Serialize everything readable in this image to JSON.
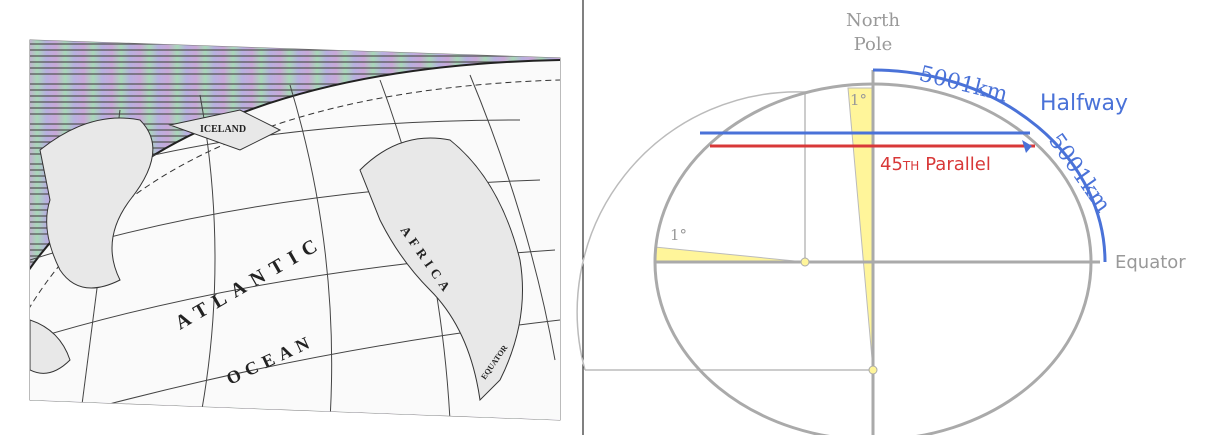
{
  "map": {
    "labels": [
      "ICELAND",
      "ATLANTIC",
      "OCEAN",
      "AFRICA",
      "EQUATOR"
    ]
  },
  "diagram": {
    "north": "North",
    "pole": "Pole",
    "arc_top": "5001km",
    "halfway": "Halfway",
    "arc_side": "5001km",
    "parallel_num": "45",
    "parallel_suffix": "TH",
    "parallel_word": "Parallel",
    "equator": "Equator",
    "angle_top": "1°",
    "angle_left": "1°"
  }
}
